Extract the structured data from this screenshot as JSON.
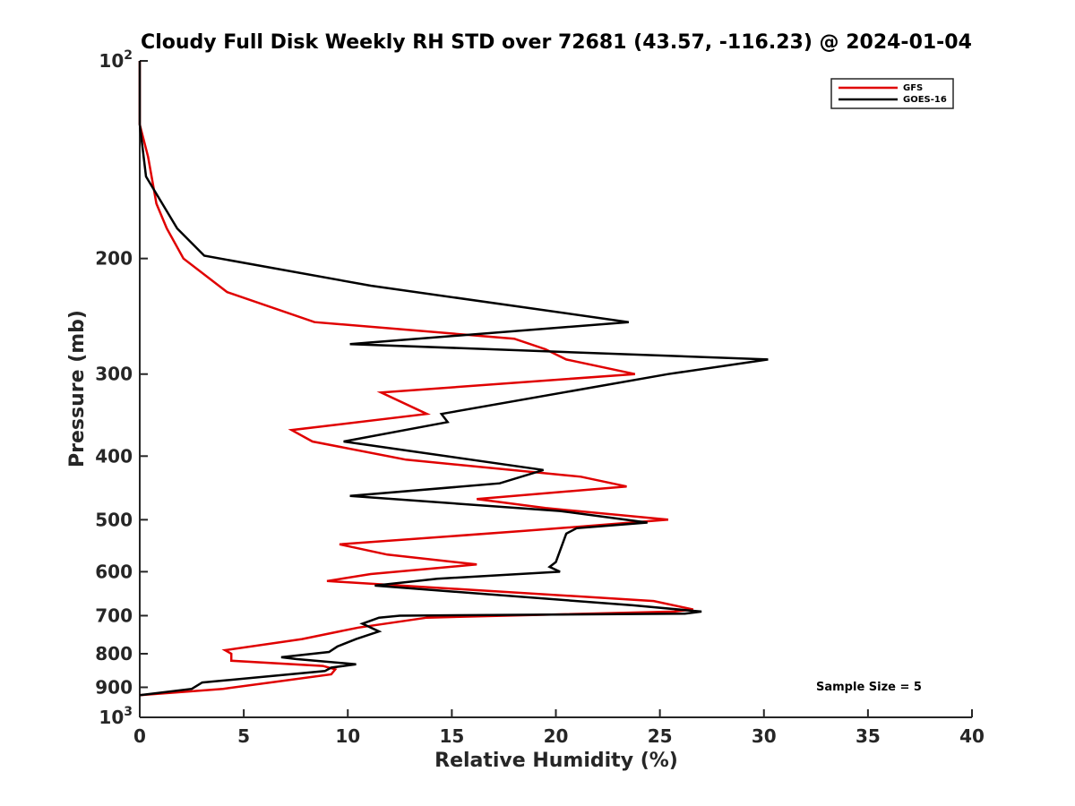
{
  "chart_data": {
    "type": "line",
    "title": "Cloudy Full Disk Weekly RH STD over 72681 (43.57, -116.23) @ 2024-01-04",
    "xlabel": "Relative Humidity (%)",
    "ylabel": "Pressure (mb)",
    "xlim": [
      0,
      40
    ],
    "ylim": [
      100,
      1000
    ],
    "yscale": "log",
    "y_reversed": true,
    "grid": false,
    "legend_position": "top-right",
    "x_ticks": [
      "0",
      "5",
      "10",
      "15",
      "20",
      "25",
      "30",
      "35",
      "40"
    ],
    "y_ticks": [
      {
        "value": 100,
        "base": "10",
        "exp": "2"
      },
      {
        "value": 200,
        "label": "200"
      },
      {
        "value": 300,
        "label": "300"
      },
      {
        "value": 400,
        "label": "400"
      },
      {
        "value": 500,
        "label": "500"
      },
      {
        "value": 600,
        "label": "600"
      },
      {
        "value": 700,
        "label": "700"
      },
      {
        "value": 800,
        "label": "800"
      },
      {
        "value": 900,
        "label": "900"
      },
      {
        "value": 1000,
        "base": "10",
        "exp": "3"
      }
    ],
    "series": [
      {
        "name": "GFS",
        "color": "#e00000",
        "points": [
          [
            0,
            100
          ],
          [
            0,
            125
          ],
          [
            0.4,
            140
          ],
          [
            0.8,
            165
          ],
          [
            1.3,
            180
          ],
          [
            2.1,
            200
          ],
          [
            4.2,
            225
          ],
          [
            8.4,
            250
          ],
          [
            18,
            265
          ],
          [
            19.5,
            275
          ],
          [
            20.5,
            285
          ],
          [
            23.8,
            300
          ],
          [
            11.6,
            320
          ],
          [
            13.8,
            345
          ],
          [
            7.3,
            365
          ],
          [
            8.3,
            380
          ],
          [
            12.8,
            405
          ],
          [
            21.2,
            430
          ],
          [
            23.4,
            445
          ],
          [
            16.2,
            465
          ],
          [
            19.5,
            480
          ],
          [
            25.4,
            500
          ],
          [
            18.5,
            520
          ],
          [
            9.6,
            545
          ],
          [
            11.9,
            565
          ],
          [
            16.2,
            585
          ],
          [
            11.1,
            605
          ],
          [
            9.0,
            620
          ],
          [
            24.7,
            665
          ],
          [
            26.6,
            685
          ],
          [
            25.7,
            690
          ],
          [
            13.8,
            705
          ],
          [
            10.5,
            730
          ],
          [
            7.8,
            760
          ],
          [
            4.1,
            790
          ],
          [
            4.4,
            800
          ],
          [
            4.4,
            820
          ],
          [
            8.8,
            835
          ],
          [
            9.4,
            845
          ],
          [
            9.2,
            860
          ],
          [
            4.0,
            905
          ],
          [
            0,
            925
          ]
        ]
      },
      {
        "name": "GOES-16",
        "color": "#000000",
        "points": [
          [
            0,
            100
          ],
          [
            0,
            125
          ],
          [
            0.3,
            150
          ],
          [
            1.8,
            180
          ],
          [
            3.1,
            198
          ],
          [
            11.1,
            220
          ],
          [
            23.5,
            250
          ],
          [
            10.1,
            270
          ],
          [
            30.2,
            285
          ],
          [
            25.4,
            300
          ],
          [
            14.5,
            345
          ],
          [
            14.8,
            355
          ],
          [
            9.8,
            380
          ],
          [
            19.4,
            420
          ],
          [
            17.3,
            440
          ],
          [
            10.1,
            460
          ],
          [
            20.2,
            485
          ],
          [
            24.4,
            505
          ],
          [
            21.0,
            515
          ],
          [
            20.5,
            525
          ],
          [
            20.0,
            580
          ],
          [
            19.7,
            590
          ],
          [
            20.2,
            600
          ],
          [
            14.3,
            615
          ],
          [
            11.3,
            630
          ],
          [
            23.7,
            675
          ],
          [
            27.0,
            690
          ],
          [
            26.2,
            695
          ],
          [
            12.5,
            700
          ],
          [
            11.5,
            705
          ],
          [
            10.7,
            720
          ],
          [
            11.5,
            740
          ],
          [
            10.4,
            760
          ],
          [
            9.5,
            780
          ],
          [
            9.1,
            795
          ],
          [
            6.8,
            810
          ],
          [
            7.5,
            815
          ],
          [
            10.4,
            830
          ],
          [
            9.2,
            840
          ],
          [
            8.9,
            850
          ],
          [
            3.0,
            885
          ],
          [
            2.5,
            905
          ],
          [
            0,
            925
          ]
        ]
      }
    ],
    "annotations": [
      {
        "text": "Sample Size = 5",
        "position": "bottom-right"
      }
    ]
  }
}
